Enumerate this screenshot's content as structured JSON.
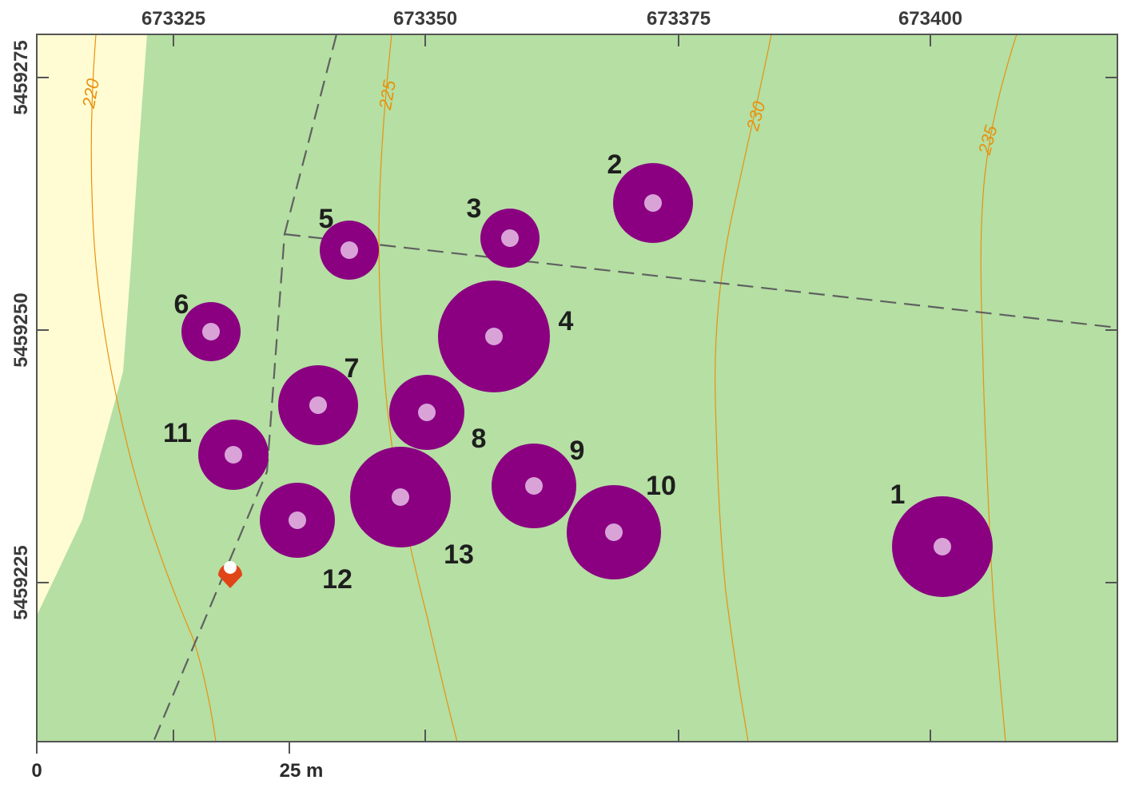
{
  "colors": {
    "forest": "#b5dfa3",
    "open_land": "#fffcd4",
    "frame": "#555555",
    "tree_crown": "#8a0081",
    "tree_center": "#d9a3d8",
    "contour": "#e8920f",
    "path": "#606060",
    "marker": "#e04518"
  },
  "map": {
    "x_ticks": [
      "673325",
      "673350",
      "673375",
      "673400"
    ],
    "y_ticks": [
      "5459275",
      "5459250",
      "5459225"
    ],
    "contours": [
      {
        "label": "220",
        "value": 220
      },
      {
        "label": "225",
        "value": 225
      },
      {
        "label": "230",
        "value": 230
      },
      {
        "label": "235",
        "value": 235
      }
    ],
    "trees": [
      {
        "id": "1",
        "label": "1"
      },
      {
        "id": "2",
        "label": "2"
      },
      {
        "id": "3",
        "label": "3"
      },
      {
        "id": "4",
        "label": "4"
      },
      {
        "id": "5",
        "label": "5"
      },
      {
        "id": "6",
        "label": "6"
      },
      {
        "id": "7",
        "label": "7"
      },
      {
        "id": "8",
        "label": "8"
      },
      {
        "id": "9",
        "label": "9"
      },
      {
        "id": "10",
        "label": "10"
      },
      {
        "id": "11",
        "label": "11"
      },
      {
        "id": "12",
        "label": "12"
      },
      {
        "id": "13",
        "label": "13"
      }
    ],
    "marker_icon": "location-pin-icon",
    "scale_bar": {
      "start_label": "0",
      "end_label": "25 m"
    }
  }
}
